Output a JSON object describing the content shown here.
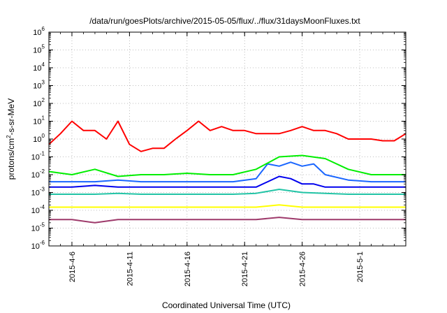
{
  "chart_data": {
    "type": "line",
    "title": "/data/run/goesPlots/archive/2015-05-05/flux/../flux/31daysMoonFluxes.txt",
    "xlabel": "Coordinated Universal Time (UTC)",
    "ylabel_parts": [
      "protons/cm",
      "2",
      "-s-sr-MeV"
    ],
    "yscale": "log",
    "ylim": [
      1e-06,
      1000000.0
    ],
    "xlim": [
      "2015-04-04",
      "2015-05-05"
    ],
    "grid": true,
    "y_ticks": [
      {
        "value": 1e-06,
        "base": "10",
        "exp": "-6"
      },
      {
        "value": 1e-05,
        "base": "10",
        "exp": "-5"
      },
      {
        "value": 0.0001,
        "base": "10",
        "exp": "-4"
      },
      {
        "value": 0.001,
        "base": "10",
        "exp": "-3"
      },
      {
        "value": 0.01,
        "base": "10",
        "exp": "-2"
      },
      {
        "value": 0.1,
        "base": "10",
        "exp": "-1"
      },
      {
        "value": 1,
        "base": "10",
        "exp": "0"
      },
      {
        "value": 10.0,
        "base": "10",
        "exp": "1"
      },
      {
        "value": 100.0,
        "base": "10",
        "exp": "2"
      },
      {
        "value": 1000.0,
        "base": "10",
        "exp": "3"
      },
      {
        "value": 10000.0,
        "base": "10",
        "exp": "4"
      },
      {
        "value": 100000.0,
        "base": "10",
        "exp": "5"
      },
      {
        "value": 1000000.0,
        "base": "10",
        "exp": "6"
      }
    ],
    "x_ticks": [
      {
        "date": "2015-04-06",
        "label": "2015-4-6"
      },
      {
        "date": "2015-04-11",
        "label": "2015-4-11"
      },
      {
        "date": "2015-04-16",
        "label": "2015-4-16"
      },
      {
        "date": "2015-04-21",
        "label": "2015-4-21"
      },
      {
        "date": "2015-04-26",
        "label": "2015-4-26"
      },
      {
        "date": "2015-05-01",
        "label": "2015-5-1"
      }
    ],
    "series": [
      {
        "color": "#9e3a6b",
        "x": [
          "2015-04-04",
          "2015-04-06",
          "2015-04-08",
          "2015-04-10",
          "2015-04-12",
          "2015-04-14",
          "2015-04-16",
          "2015-04-18",
          "2015-04-20",
          "2015-04-22",
          "2015-04-24",
          "2015-04-26",
          "2015-04-28",
          "2015-04-30",
          "2015-05-02",
          "2015-05-04",
          "2015-05-05"
        ],
        "values": [
          3e-05,
          3e-05,
          2e-05,
          3e-05,
          3e-05,
          3e-05,
          3e-05,
          3e-05,
          3e-05,
          3e-05,
          4e-05,
          3e-05,
          3e-05,
          3e-05,
          3e-05,
          3e-05,
          3e-05
        ]
      },
      {
        "color": "#ffff00",
        "x": [
          "2015-04-04",
          "2015-04-06",
          "2015-04-08",
          "2015-04-10",
          "2015-04-12",
          "2015-04-14",
          "2015-04-16",
          "2015-04-18",
          "2015-04-20",
          "2015-04-22",
          "2015-04-24",
          "2015-04-26",
          "2015-04-28",
          "2015-04-30",
          "2015-05-02",
          "2015-05-04",
          "2015-05-05"
        ],
        "values": [
          0.00015,
          0.00015,
          0.00015,
          0.00015,
          0.00015,
          0.00015,
          0.00015,
          0.00015,
          0.00015,
          0.00015,
          0.0002,
          0.00015,
          0.00015,
          0.00015,
          0.00015,
          0.00015,
          0.00015
        ]
      },
      {
        "color": "#22c4a6",
        "x": [
          "2015-04-04",
          "2015-04-06",
          "2015-04-08",
          "2015-04-10",
          "2015-04-12",
          "2015-04-14",
          "2015-04-16",
          "2015-04-18",
          "2015-04-20",
          "2015-04-22",
          "2015-04-24",
          "2015-04-26",
          "2015-04-28",
          "2015-04-30",
          "2015-05-02",
          "2015-05-04",
          "2015-05-05"
        ],
        "values": [
          0.0008,
          0.0008,
          0.0008,
          0.0009,
          0.0008,
          0.0008,
          0.0008,
          0.0008,
          0.0008,
          0.0009,
          0.0015,
          0.001,
          0.0009,
          0.0008,
          0.0008,
          0.0008,
          0.0008
        ]
      },
      {
        "color": "#0000ee",
        "x": [
          "2015-04-04",
          "2015-04-06",
          "2015-04-08",
          "2015-04-10",
          "2015-04-12",
          "2015-04-14",
          "2015-04-16",
          "2015-04-18",
          "2015-04-20",
          "2015-04-22",
          "2015-04-24",
          "2015-04-25",
          "2015-04-26",
          "2015-04-27",
          "2015-04-28",
          "2015-04-30",
          "2015-05-02",
          "2015-05-04",
          "2015-05-05"
        ],
        "values": [
          0.002,
          0.002,
          0.0025,
          0.002,
          0.002,
          0.002,
          0.002,
          0.002,
          0.002,
          0.002,
          0.008,
          0.006,
          0.003,
          0.003,
          0.002,
          0.002,
          0.002,
          0.002,
          0.002
        ]
      },
      {
        "color": "#1a66ff",
        "x": [
          "2015-04-04",
          "2015-04-06",
          "2015-04-08",
          "2015-04-10",
          "2015-04-12",
          "2015-04-14",
          "2015-04-16",
          "2015-04-18",
          "2015-04-20",
          "2015-04-22",
          "2015-04-23",
          "2015-04-24",
          "2015-04-25",
          "2015-04-26",
          "2015-04-27",
          "2015-04-28",
          "2015-04-30",
          "2015-05-02",
          "2015-05-04",
          "2015-05-05"
        ],
        "values": [
          0.004,
          0.004,
          0.004,
          0.005,
          0.004,
          0.004,
          0.004,
          0.004,
          0.004,
          0.006,
          0.04,
          0.03,
          0.05,
          0.03,
          0.04,
          0.01,
          0.005,
          0.004,
          0.004,
          0.004
        ]
      },
      {
        "color": "#00ee00",
        "x": [
          "2015-04-04",
          "2015-04-06",
          "2015-04-08",
          "2015-04-10",
          "2015-04-12",
          "2015-04-14",
          "2015-04-16",
          "2015-04-18",
          "2015-04-20",
          "2015-04-22",
          "2015-04-24",
          "2015-04-26",
          "2015-04-28",
          "2015-04-30",
          "2015-05-02",
          "2015-05-04",
          "2015-05-05"
        ],
        "values": [
          0.015,
          0.01,
          0.02,
          0.008,
          0.01,
          0.01,
          0.012,
          0.01,
          0.01,
          0.02,
          0.1,
          0.12,
          0.08,
          0.02,
          0.01,
          0.01,
          0.01
        ]
      },
      {
        "color": "#ff0000",
        "x": [
          "2015-04-04",
          "2015-04-05",
          "2015-04-06",
          "2015-04-07",
          "2015-04-08",
          "2015-04-09",
          "2015-04-10",
          "2015-04-11",
          "2015-04-12",
          "2015-04-13",
          "2015-04-14",
          "2015-04-15",
          "2015-04-16",
          "2015-04-17",
          "2015-04-18",
          "2015-04-19",
          "2015-04-20",
          "2015-04-21",
          "2015-04-22",
          "2015-04-23",
          "2015-04-24",
          "2015-04-25",
          "2015-04-26",
          "2015-04-27",
          "2015-04-28",
          "2015-04-29",
          "2015-04-30",
          "2015-05-01",
          "2015-05-02",
          "2015-05-03",
          "2015-05-04",
          "2015-05-05"
        ],
        "values": [
          0.5,
          2,
          10,
          3,
          3,
          1,
          10,
          0.5,
          0.2,
          0.3,
          0.3,
          1,
          3,
          10,
          3,
          5,
          3,
          3,
          2,
          2,
          2,
          3,
          5,
          3,
          3,
          2,
          1,
          1,
          1,
          0.8,
          0.8,
          2
        ]
      }
    ]
  }
}
